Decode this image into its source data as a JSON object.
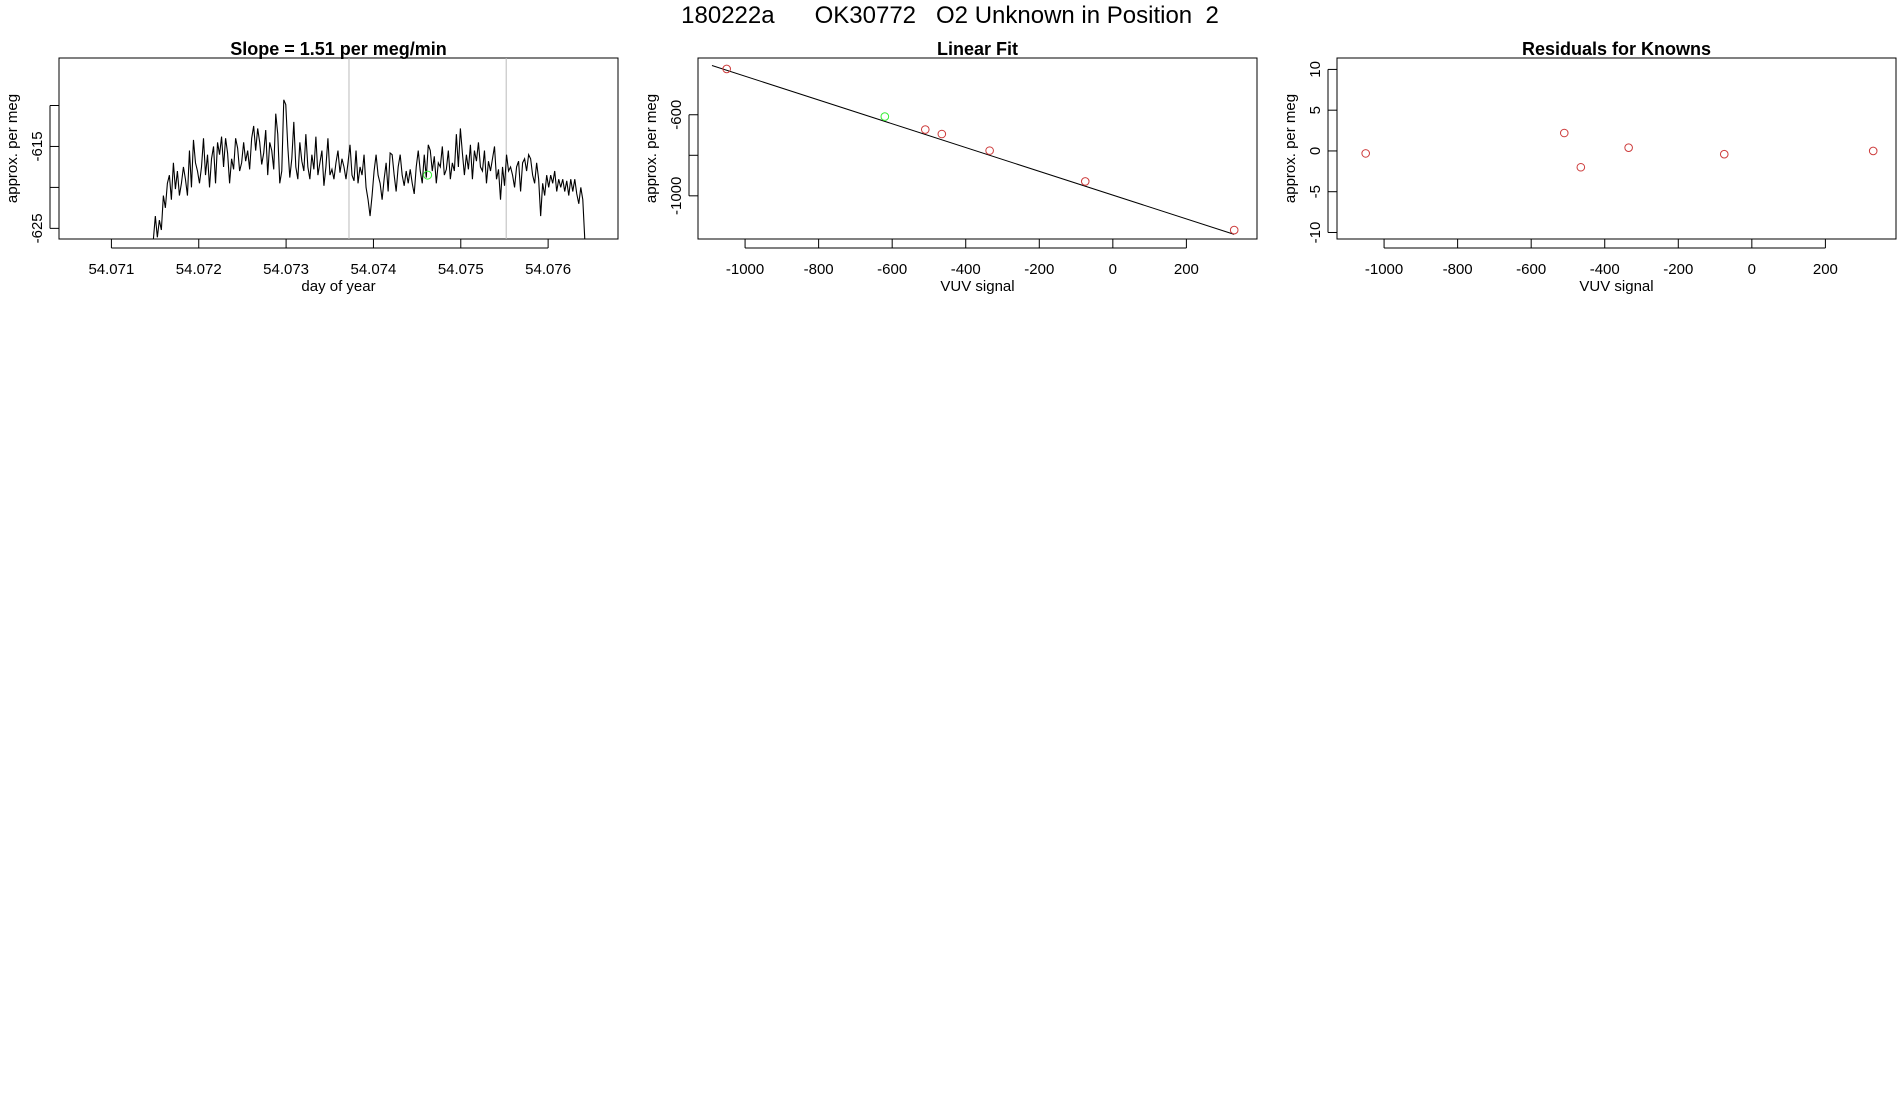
{
  "page_title": "180222a      OK30772   O2 Unknown in Position  2",
  "colors": {
    "axis": "#000000",
    "trace": "#000000",
    "vline": "#bbbbbb",
    "known_point": "#cd3b3b",
    "unknown_point": "#33ee33",
    "fit_line": "#000000"
  },
  "chart_data": [
    {
      "type": "line",
      "title": "Slope =  1.51  per meg/min",
      "xlabel": "day of year",
      "ylabel": "approx. per meg",
      "xlim": [
        54.0704,
        54.0768
      ],
      "ylim": [
        -626.3,
        -604.2
      ],
      "xticks": [
        54.071,
        54.072,
        54.073,
        54.074,
        54.075,
        54.076
      ],
      "xtick_labels": [
        "54.071",
        "54.072",
        "54.073",
        "54.074",
        "54.075",
        "54.076"
      ],
      "yticks": [
        -610,
        -615,
        -620,
        -625
      ],
      "ytick_labels": [
        "",
        "-615",
        "",
        "-625"
      ],
      "vlines": [
        54.07372,
        54.07552
      ],
      "marker": {
        "x": 54.07462,
        "y": -618.5,
        "color": "green"
      },
      "series": [
        {
          "x_start": 54.07148,
          "x_end": 54.07642,
          "values": [
            -626.4,
            -623.5,
            -626.1,
            -624.0,
            -625.2,
            -621.0,
            -622.5,
            -619.5,
            -618.5,
            -621.5,
            -617.0,
            -620.2,
            -618.0,
            -621.0,
            -619.5,
            -617.5,
            -619.0,
            -621.0,
            -615.5,
            -620.0,
            -614.2,
            -617.0,
            -618.0,
            -619.5,
            -617.5,
            -614.0,
            -618.5,
            -616.0,
            -620.0,
            -616.5,
            -615.0,
            -619.5,
            -614.5,
            -616.0,
            -613.8,
            -617.5,
            -614.0,
            -615.8,
            -619.5,
            -616.5,
            -617.8,
            -614.0,
            -615.2,
            -618.0,
            -617.0,
            -614.5,
            -616.8,
            -615.5,
            -617.8,
            -614.0,
            -612.5,
            -615.5,
            -612.8,
            -614.5,
            -617.2,
            -615.8,
            -613.0,
            -618.5,
            -614.5,
            -615.5,
            -617.8,
            -611.0,
            -613.5,
            -619.5,
            -618.0,
            -609.3,
            -609.9,
            -615.0,
            -618.8,
            -616.5,
            -612.0,
            -617.5,
            -619.0,
            -614.5,
            -616.8,
            -618.0,
            -613.5,
            -617.5,
            -619.0,
            -616.0,
            -617.8,
            -613.8,
            -618.5,
            -617.0,
            -615.5,
            -619.8,
            -617.5,
            -614.0,
            -618.5,
            -617.8,
            -619.0,
            -617.0,
            -615.5,
            -618.2,
            -616.5,
            -617.5,
            -619.0,
            -617.0,
            -614.8,
            -618.5,
            -619.2,
            -615.5,
            -619.5,
            -617.5,
            -618.5,
            -616.0,
            -620.0,
            -621.5,
            -623.5,
            -621.0,
            -618.0,
            -616.0,
            -618.5,
            -619.5,
            -621.5,
            -619.0,
            -617.0,
            -620.5,
            -615.8,
            -616.0,
            -618.5,
            -620.5,
            -617.5,
            -616.0,
            -618.5,
            -619.8,
            -618.0,
            -619.5,
            -617.8,
            -619.5,
            -620.8,
            -617.5,
            -615.5,
            -618.0,
            -619.5,
            -616.0,
            -618.8,
            -614.8,
            -615.5,
            -618.0,
            -616.2,
            -619.5,
            -617.0,
            -617.5,
            -615.0,
            -618.5,
            -617.8,
            -615.5,
            -619.0,
            -617.0,
            -618.0,
            -613.5,
            -617.5,
            -612.8,
            -615.8,
            -618.5,
            -616.0,
            -617.8,
            -614.8,
            -619.0,
            -615.5,
            -616.8,
            -614.5,
            -617.5,
            -618.0,
            -615.5,
            -619.5,
            -616.8,
            -618.0,
            -616.5,
            -615.0,
            -619.0,
            -617.8,
            -621.5,
            -617.5,
            -619.8,
            -616.0,
            -618.0,
            -617.5,
            -618.5,
            -620.0,
            -617.5,
            -616.8,
            -620.5,
            -617.0,
            -616.5,
            -618.0,
            -616.0,
            -616.5,
            -618.5,
            -619.5,
            -617.0,
            -619.0,
            -623.5,
            -619.5,
            -621.0,
            -618.5,
            -620.0,
            -618.5,
            -619.5,
            -618.0,
            -620.5,
            -619.0,
            -620.0,
            -619.0,
            -620.5,
            -619.2,
            -621.0,
            -619.0,
            -620.5,
            -619.0,
            -620.8,
            -622.0,
            -620.0,
            -621.5,
            -626.4
          ]
        }
      ]
    },
    {
      "type": "scatter",
      "title": "Linear Fit",
      "xlabel": "VUV signal",
      "ylabel": "approx. per meg",
      "xlim": [
        -1128,
        392
      ],
      "ylim": [
        -1213,
        -320
      ],
      "xticks": [
        -1000,
        -800,
        -600,
        -400,
        -200,
        0,
        200
      ],
      "xtick_labels": [
        "-1000",
        "-800",
        "-600",
        "-400",
        "-200",
        "0",
        "200"
      ],
      "yticks": [
        -600,
        -800,
        -1000
      ],
      "ytick_labels": [
        "-600",
        "",
        "-1000"
      ],
      "fit_line": {
        "x": [
          -1090,
          330
        ],
        "y": [
          -357,
          -1190
        ]
      },
      "series": [
        {
          "name": "knowns",
          "color": "red",
          "x": [
            -1050,
            -510,
            -465,
            -335,
            -75,
            330
          ],
          "y": [
            -374,
            -673,
            -695,
            -777,
            -929,
            -1169
          ]
        },
        {
          "name": "unknown",
          "color": "green",
          "x": [
            -620
          ],
          "y": [
            -609
          ]
        }
      ]
    },
    {
      "type": "scatter",
      "title": "Residuals for Knowns",
      "xlabel": "VUV signal",
      "ylabel": "approx. per meg",
      "xlim": [
        -1128,
        392
      ],
      "ylim": [
        -10.8,
        11.4
      ],
      "xticks": [
        -1000,
        -800,
        -600,
        -400,
        -200,
        0,
        200
      ],
      "xtick_labels": [
        "-1000",
        "-800",
        "-600",
        "-400",
        "-200",
        "0",
        "200"
      ],
      "yticks": [
        10,
        5,
        0,
        -5,
        -10
      ],
      "ytick_labels": [
        "10",
        "5",
        "0",
        "-5",
        "-10"
      ],
      "series": [
        {
          "name": "residuals",
          "color": "red",
          "x": [
            -1050,
            -510,
            -465,
            -335,
            -75,
            330
          ],
          "y": [
            -0.3,
            2.2,
            -2.0,
            0.4,
            -0.4,
            0.0
          ]
        }
      ]
    }
  ]
}
